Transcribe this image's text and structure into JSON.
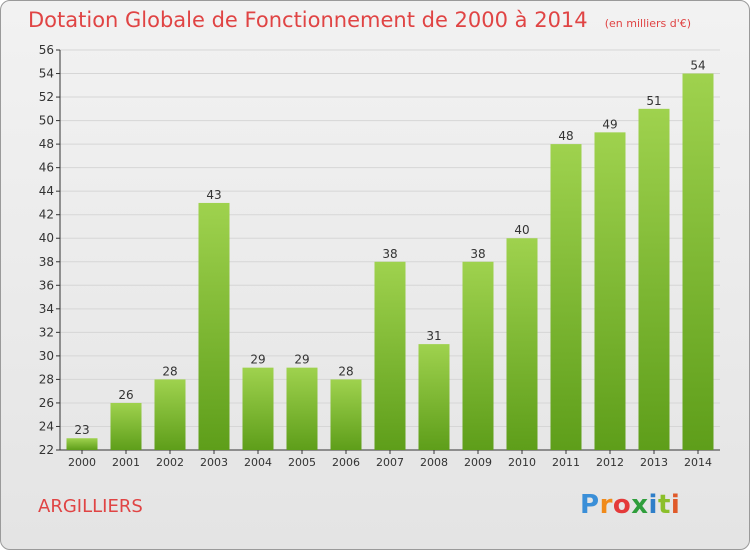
{
  "title": "Dotation Globale de Fonctionnement de 2000 à 2014",
  "subtitle": "(en milliers d'€)",
  "commune": "ARGILLIERS",
  "logo": {
    "letters": [
      "P",
      "r",
      "o",
      "x",
      "i",
      "t",
      "i"
    ],
    "colors": [
      "#3a8fd8",
      "#f08a1a",
      "#e43a3a",
      "#2f9e3c",
      "#2f7fc9",
      "#8bbf2a",
      "#e05a2a"
    ]
  },
  "colors": {
    "title": "#e04444",
    "bar_light": "#9fd24e",
    "bar_dark": "#5e9e1a",
    "grid": "#d6d6d6",
    "axis": "#333333"
  },
  "chart_data": {
    "type": "bar",
    "categories": [
      "2000",
      "2001",
      "2002",
      "2003",
      "2004",
      "2005",
      "2006",
      "2007",
      "2008",
      "2009",
      "2010",
      "2011",
      "2012",
      "2013",
      "2014"
    ],
    "values": [
      23,
      26,
      28,
      43,
      29,
      29,
      28,
      38,
      31,
      38,
      40,
      48,
      49,
      51,
      54
    ],
    "ylim": [
      22,
      56
    ],
    "yticks": [
      22,
      24,
      26,
      28,
      30,
      32,
      34,
      36,
      38,
      40,
      42,
      44,
      46,
      48,
      50,
      52,
      54,
      56
    ],
    "grid": true,
    "data_labels": true
  }
}
